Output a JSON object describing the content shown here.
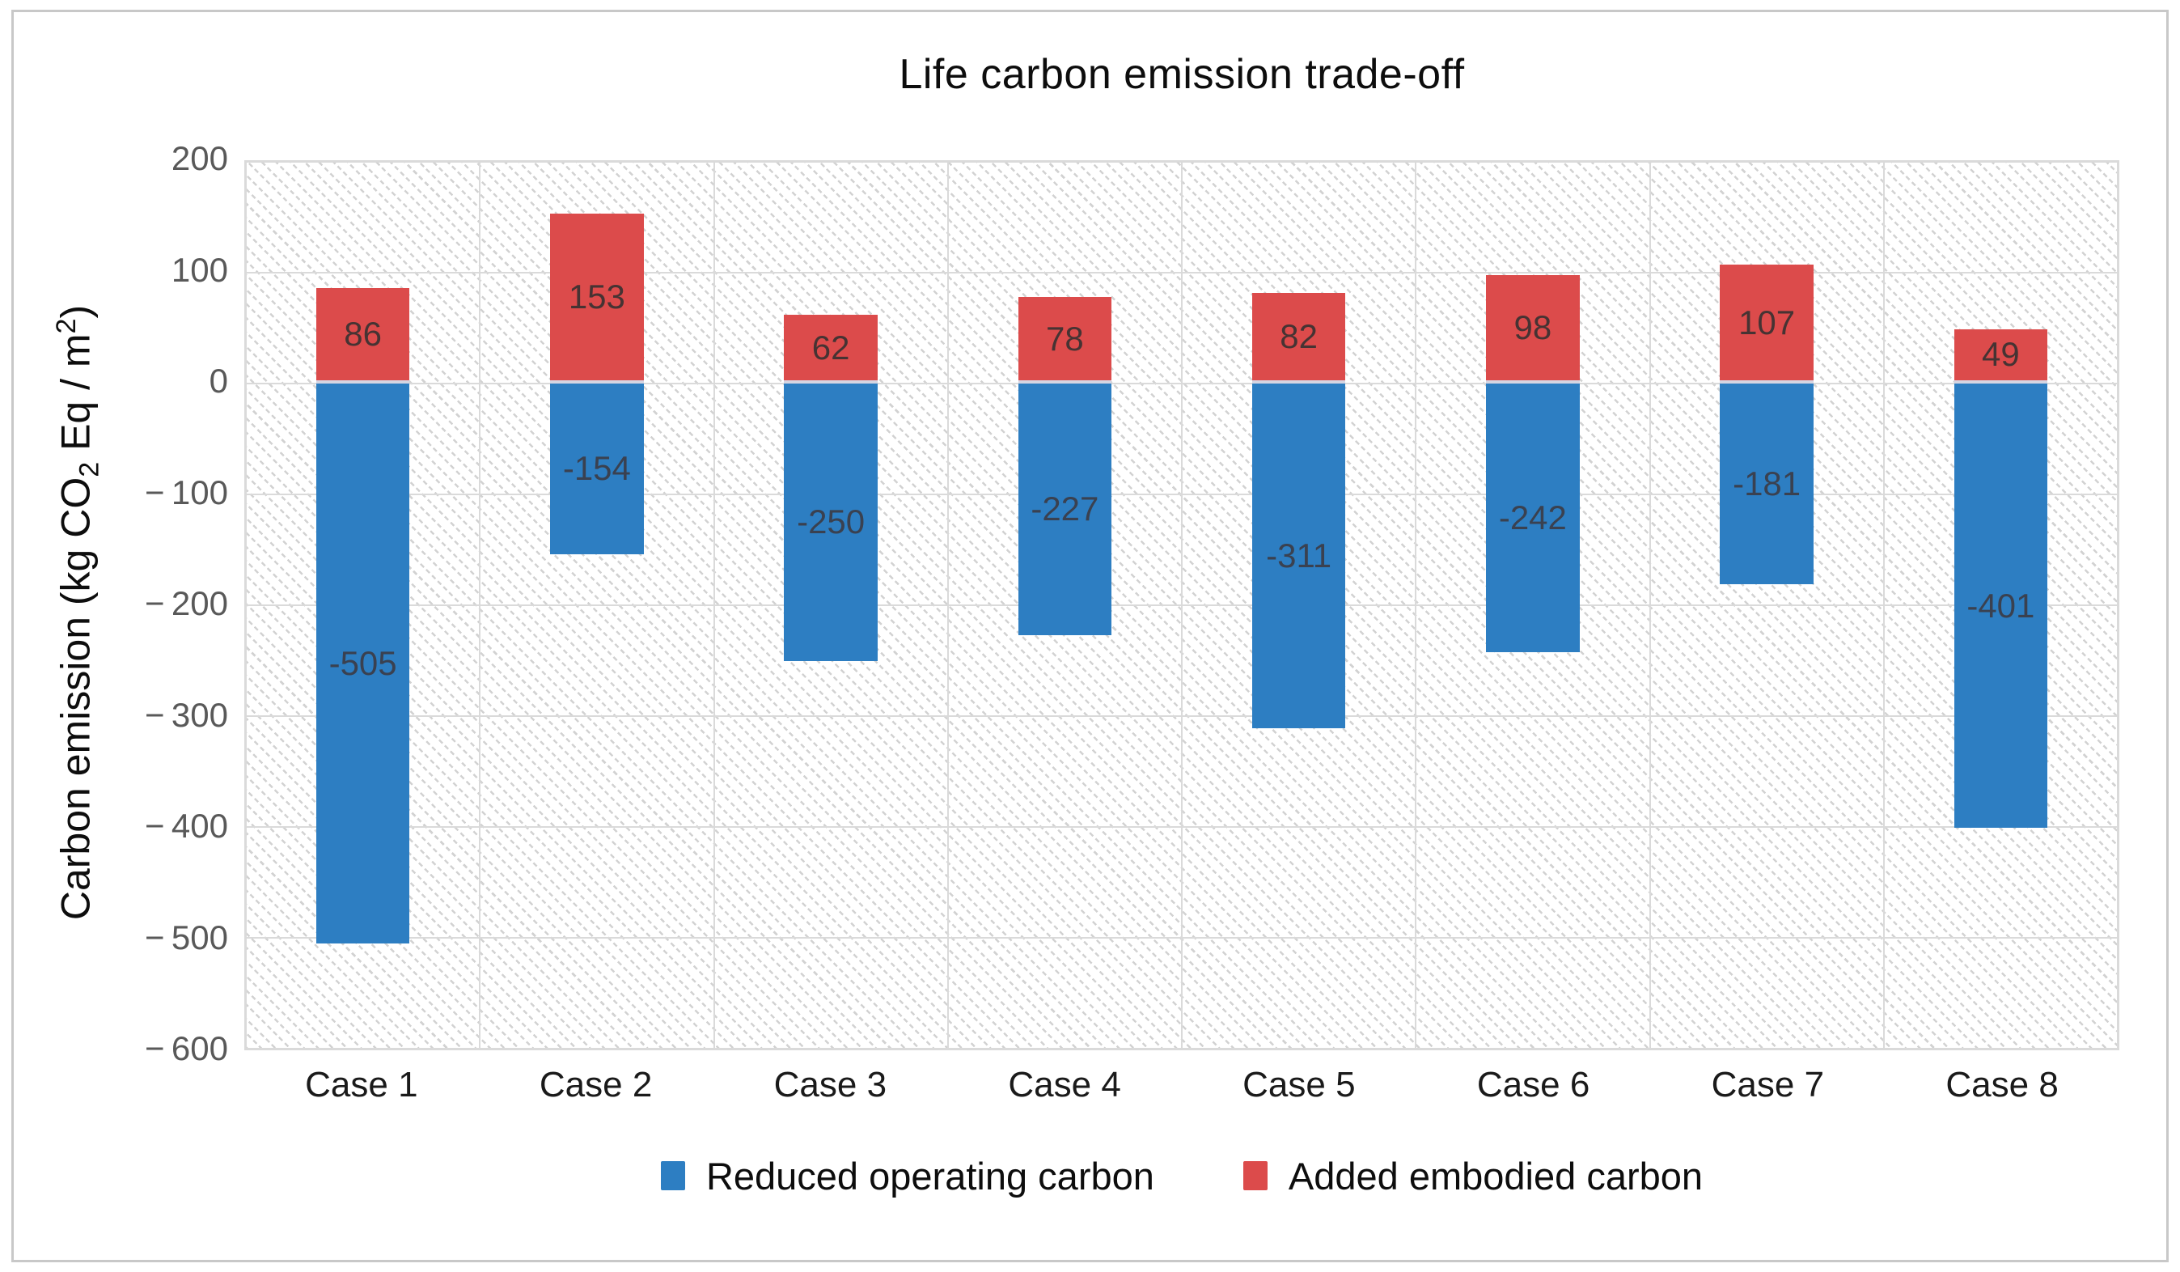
{
  "figure": {
    "title": "Life carbon emission trade-off"
  },
  "y_axis": {
    "label_prefix": "Carbon emission (kg CO",
    "label_sub": "2",
    "label_mid": " Eq / m",
    "label_sup": "2",
    "label_suffix": ")"
  },
  "legend": {
    "items": [
      {
        "label": "Reduced operating carbon",
        "color": "#2D7EC2"
      },
      {
        "label": "Added embodied carbon",
        "color": "#DC4B4B"
      }
    ]
  },
  "chart_data": {
    "type": "bar",
    "subtype": "stacked-diverging",
    "title": "Life carbon emission trade-off",
    "ylabel": "Carbon emission (kg CO2 Eq / m2)",
    "xlabel": "",
    "ylim": [
      -600,
      200
    ],
    "ytick_step": 100,
    "yticks": [
      200,
      100,
      0,
      -100,
      -200,
      -300,
      -400,
      -500,
      -600
    ],
    "grid": true,
    "legend_position": "bottom",
    "categories": [
      "Case 1",
      "Case 2",
      "Case 3",
      "Case 4",
      "Case 5",
      "Case 6",
      "Case 7",
      "Case 8"
    ],
    "series": [
      {
        "name": "Reduced operating carbon",
        "color": "#2D7EC2",
        "label_color": "#3A4150",
        "values": [
          -505,
          -154,
          -250,
          -227,
          -311,
          -242,
          -181,
          -401
        ]
      },
      {
        "name": "Added embodied carbon",
        "color": "#DC4B4B",
        "label_color": "#463333",
        "values": [
          86,
          153,
          62,
          78,
          82,
          98,
          107,
          49
        ]
      }
    ],
    "colors": {
      "gridline": "#dadada",
      "tick_text": "#595959",
      "category_text": "#1a1a1a",
      "zero_gap_line": "#d5d5e2",
      "frame_border": "#c8c8c8"
    }
  }
}
